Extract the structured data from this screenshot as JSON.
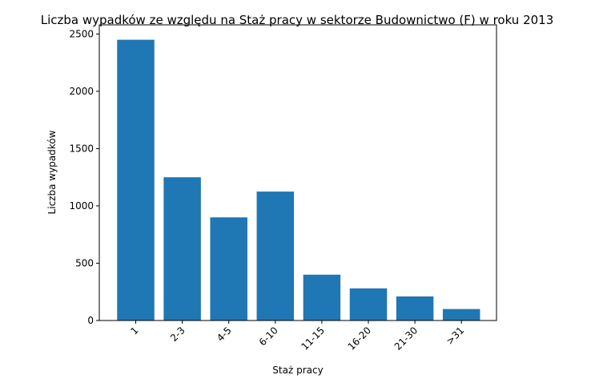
{
  "chart_data": {
    "type": "bar",
    "title": "Liczba wypadków ze względu na Staż pracy w sektorze Budownictwo (F)   w roku 2013",
    "xlabel": "Staż pracy",
    "ylabel": "Liczba wypadków",
    "categories": [
      "1",
      "2-3",
      "4-5",
      "6-10",
      "11-15",
      "16-20",
      "21-30",
      ">31"
    ],
    "values": [
      2450,
      1250,
      900,
      1125,
      400,
      280,
      210,
      100
    ],
    "ylim": [
      0,
      2580
    ],
    "yticks": [
      0,
      500,
      1000,
      1500,
      2000,
      2500
    ],
    "bar_color": "#1f77b4",
    "grid": false
  }
}
